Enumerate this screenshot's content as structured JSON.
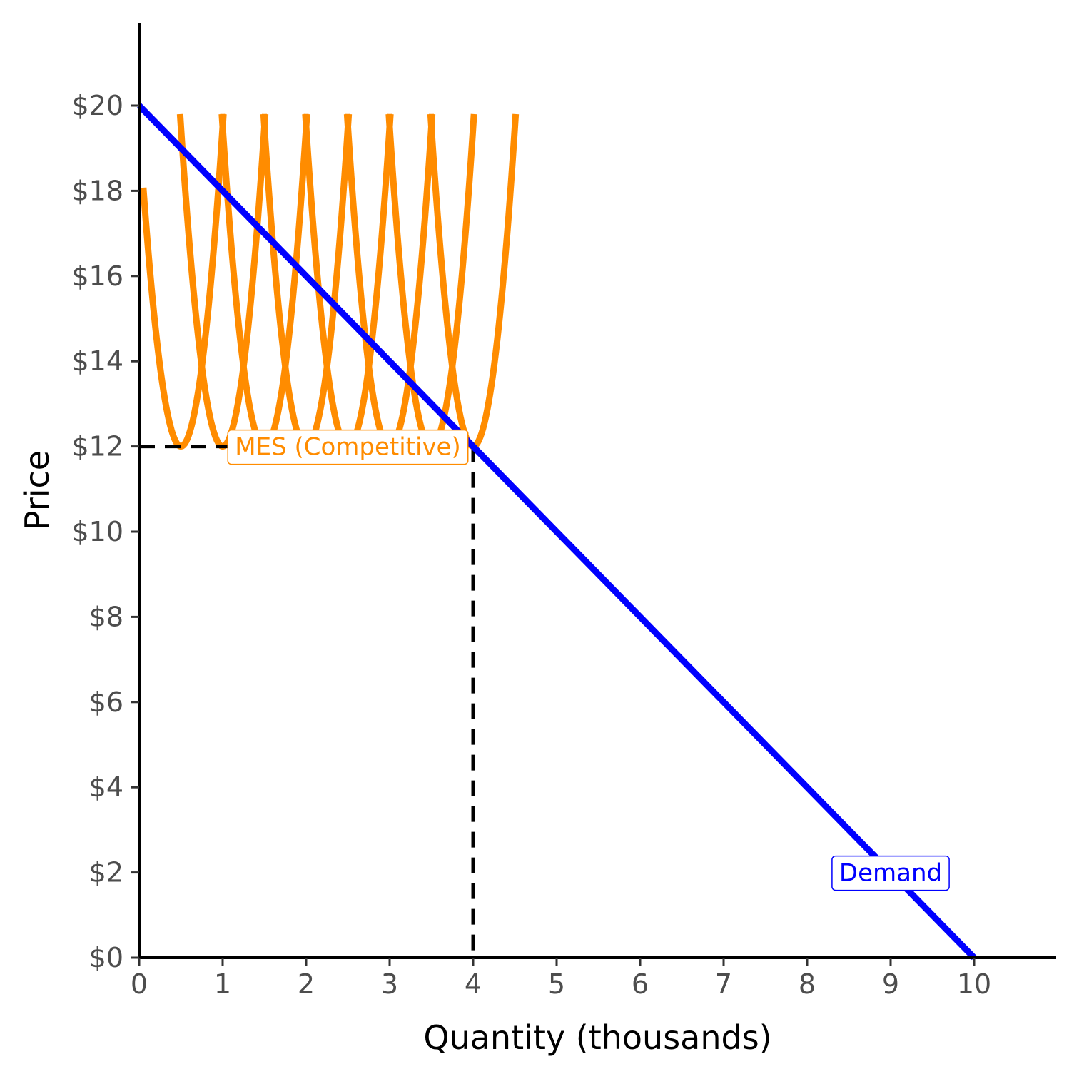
{
  "chart_data": {
    "type": "line",
    "title": "",
    "xlabel": "Quantity (thousands)",
    "ylabel": "Price",
    "xlim": [
      0,
      11
    ],
    "ylim": [
      0,
      22
    ],
    "x_ticks": [
      0,
      1,
      2,
      3,
      4,
      5,
      6,
      7,
      8,
      9,
      10
    ],
    "x_tick_labels": [
      "0",
      "1",
      "2",
      "3",
      "4",
      "5",
      "6",
      "7",
      "8",
      "9",
      "10"
    ],
    "y_ticks": [
      0,
      2,
      4,
      6,
      8,
      10,
      12,
      14,
      16,
      18,
      20
    ],
    "y_tick_labels": [
      "$0",
      "$2",
      "$4",
      "$6",
      "$8",
      "$10",
      "$12",
      "$14",
      "$16",
      "$18",
      "$20"
    ],
    "grid": false,
    "demand": {
      "label": "Demand",
      "color": "#0000ff",
      "points": [
        [
          0,
          20
        ],
        [
          10,
          0
        ]
      ],
      "label_position": [
        9,
        2
      ]
    },
    "average_cost_curves": {
      "color": "#ff8c00",
      "min_price": 12,
      "curvature": 30,
      "curve_top_price": 19.8,
      "minimum_points_x": [
        0.5,
        1,
        1.5,
        2,
        2.5,
        3,
        3.5,
        4
      ],
      "x_lower_bound": 0.05
    },
    "mes_reference": {
      "label": "MES (Competitive)",
      "color": "#ff8c00",
      "price": 12,
      "quantity": 4,
      "label_position": [
        2.5,
        12
      ]
    },
    "reference_line_color": "#000000"
  }
}
